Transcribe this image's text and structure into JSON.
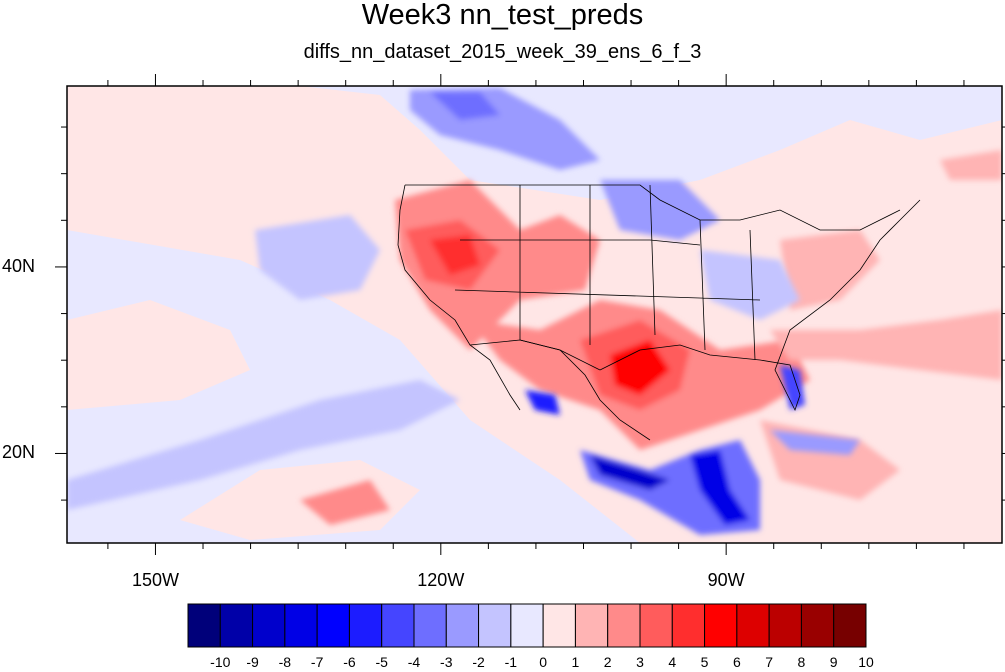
{
  "title": "Week3 nn_test_preds",
  "subtitle": "diffs_nn_dataset_2015_week_39_ens_6_f_3",
  "axes": {
    "x_ticks": [
      {
        "label": "150W",
        "lon": -150
      },
      {
        "label": "120W",
        "lon": -120
      },
      {
        "label": "90W",
        "lon": -90
      }
    ],
    "y_ticks": [
      {
        "label": "40N",
        "lat": 40
      },
      {
        "label": "20N",
        "lat": 20
      }
    ],
    "lon_range": [
      -159.3,
      -61
    ],
    "lat_range": [
      10.4,
      59.4
    ]
  },
  "colorbar": {
    "labels": [
      "-10",
      "-9",
      "-8",
      "-7",
      "-6",
      "-5",
      "-4",
      "-3",
      "-2",
      "-1",
      "0",
      "1",
      "2",
      "3",
      "4",
      "5",
      "6",
      "7",
      "8",
      "9",
      "10"
    ],
    "colors": [
      "#00007a",
      "#0000a8",
      "#0000cc",
      "#0000e6",
      "#0000ff",
      "#1c1cff",
      "#4545ff",
      "#6e6eff",
      "#9a9aff",
      "#c4c4ff",
      "#e8e8ff",
      "#ffe6e6",
      "#ffb4b4",
      "#ff8a8a",
      "#ff5c5c",
      "#ff2e2e",
      "#ff0000",
      "#dd0000",
      "#bb0000",
      "#990000",
      "#770000"
    ]
  }
}
